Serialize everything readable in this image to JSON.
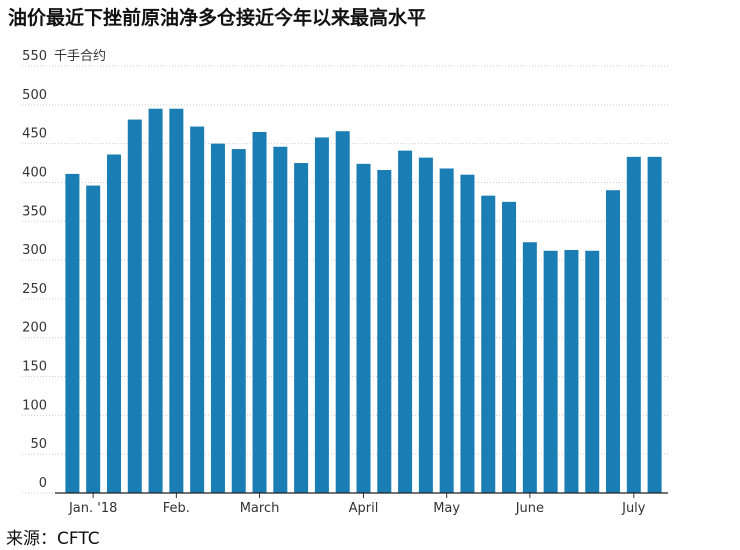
{
  "chart_data": {
    "type": "bar",
    "title": "油价最近下挫前原油净多仓接近今年以来最高水平",
    "y_label": "千手合约",
    "source": "来源：CFTC",
    "categories": [
      null,
      "Jan. '18",
      null,
      null,
      null,
      "Feb.",
      null,
      null,
      null,
      "March",
      null,
      null,
      null,
      null,
      "April",
      null,
      null,
      null,
      "May",
      null,
      null,
      null,
      "June",
      null,
      null,
      null,
      null,
      "July",
      null
    ],
    "values": [
      411,
      396,
      436,
      481,
      495,
      495,
      472,
      450,
      443,
      465,
      446,
      425,
      458,
      466,
      424,
      416,
      441,
      432,
      418,
      410,
      383,
      375,
      323,
      312,
      313,
      312,
      390,
      433,
      433
    ],
    "color": "#1a7db3",
    "ylim": [
      0,
      550
    ],
    "yticks": [
      0,
      50,
      100,
      150,
      200,
      250,
      300,
      350,
      400,
      450,
      500,
      550
    ],
    "grid": true
  }
}
